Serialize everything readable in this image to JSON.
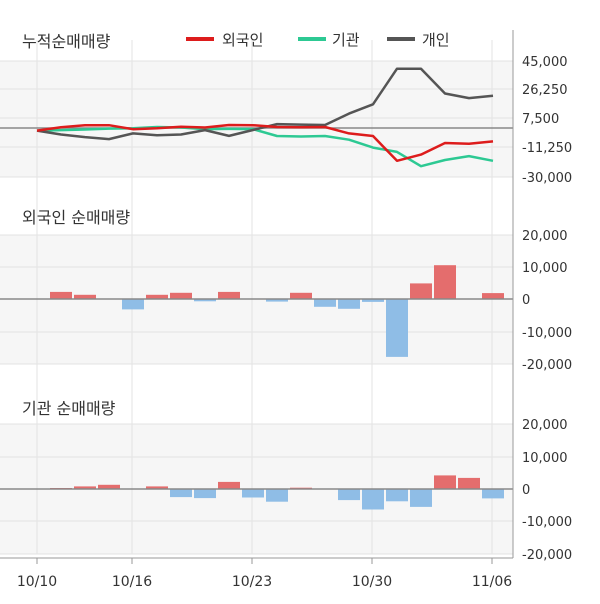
{
  "colors": {
    "foreign": "#dd1c1c",
    "institution": "#2dc993",
    "individual": "#555555",
    "bar_positive": "#e46d6d",
    "bar_negative": "#8fbde6",
    "panel_bg": "#f6f6f6",
    "grid": "#e6e6e6",
    "zero_line": "#888888"
  },
  "x_labels": [
    "10/10",
    "10/16",
    "10/23",
    "10/30",
    "11/06"
  ],
  "chart_data": [
    {
      "type": "line",
      "title": "누적순매매량",
      "legend_position": "top",
      "ylim": [
        -30000,
        45000
      ],
      "yticks": [
        "45,000",
        "26,250",
        "7,500",
        "-11,250",
        "-30,000"
      ],
      "ytick_values": [
        45000,
        26250,
        7500,
        -11250,
        -30000
      ],
      "x_count": 20,
      "series": [
        {
          "name": "외국인",
          "key": "foreign",
          "values": [
            0,
            2200,
            3500,
            3500,
            900,
            1500,
            2500,
            2000,
            3600,
            3500,
            2300,
            2200,
            2300,
            -1800,
            -3500,
            -19500,
            -15500,
            -8000,
            -8500,
            -7000
          ]
        },
        {
          "name": "기관",
          "key": "institution",
          "values": [
            0,
            300,
            700,
            1300,
            1500,
            2300,
            2000,
            1000,
            1100,
            1000,
            -3500,
            -3800,
            -3500,
            -5900,
            -11000,
            -13800,
            -23000,
            -19000,
            -16500,
            -19500
          ]
        },
        {
          "name": "개인",
          "key": "individual",
          "values": [
            0,
            -2500,
            -4200,
            -5500,
            -1800,
            -3000,
            -2500,
            300,
            -3400,
            400,
            4200,
            3900,
            3600,
            11000,
            17000,
            40000,
            40000,
            24000,
            21000,
            22500
          ]
        }
      ]
    },
    {
      "type": "bar",
      "title": "외국인 순매매량",
      "ylim": [
        -20000,
        20000
      ],
      "yticks": [
        "20,000",
        "10,000",
        "0",
        "-10,000",
        "-20,000"
      ],
      "ytick_values": [
        20000,
        10000,
        0,
        -10000,
        -20000
      ],
      "values": [
        2200,
        1300,
        0,
        -3200,
        1300,
        1900,
        -700,
        2200,
        0,
        -800,
        1900,
        -2400,
        -3000,
        -900,
        -17800,
        4800,
        10400,
        0,
        1800
      ]
    },
    {
      "type": "bar",
      "title": "기관 순매매량",
      "ylim": [
        -20000,
        20000
      ],
      "yticks": [
        "20,000",
        "10,000",
        "0",
        "-10,000",
        "-20,000"
      ],
      "ytick_values": [
        20000,
        10000,
        0,
        -10000,
        -20000
      ],
      "values": [
        300,
        800,
        1300,
        0,
        800,
        -2500,
        -2800,
        2200,
        -2600,
        -3900,
        400,
        0,
        -3400,
        -6300,
        -3800,
        -5500,
        4200,
        3400,
        -2900
      ]
    }
  ]
}
